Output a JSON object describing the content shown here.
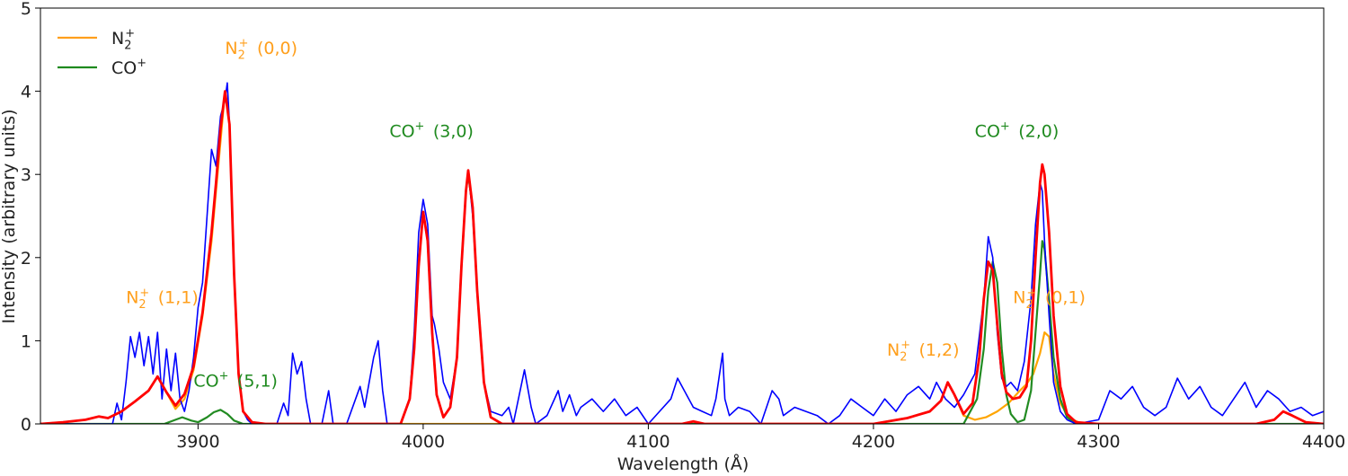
{
  "chart_data": {
    "type": "line",
    "title": "",
    "xlabel": "Wavelength (Å)",
    "ylabel": "Intensity (arbitrary units)",
    "xlim": [
      3830,
      4400
    ],
    "ylim": [
      0,
      5
    ],
    "x_ticks": [
      3900,
      4000,
      4100,
      4200,
      4300,
      4400
    ],
    "y_ticks": [
      0,
      1,
      2,
      3,
      4,
      5
    ],
    "grid": false,
    "legend_position": "top-left",
    "legend": [
      {
        "label_base": "N",
        "label_sub": "2",
        "label_sup": "+",
        "color": "#ff9f1c"
      },
      {
        "label_base": "CO",
        "label_sub": "",
        "label_sup": "+",
        "color": "#1f8a1f"
      }
    ],
    "colors": {
      "observed": "#0000ff",
      "n2_model": "#ffa500",
      "co_model": "#228b22",
      "total_model": "#ff0000"
    },
    "series": [
      {
        "id": "n2_model",
        "x": [
          3830,
          3840,
          3850,
          3856,
          3860,
          3866,
          3872,
          3878,
          3882,
          3886,
          3890,
          3894,
          3898,
          3902,
          3906,
          3908,
          3910,
          3912,
          3914,
          3916,
          3918,
          3920,
          3924,
          3930,
          4200,
          4215,
          4225,
          4230,
          4233,
          4236,
          4240,
          4245,
          4250,
          4255,
          4260,
          4265,
          4268,
          4271,
          4274,
          4276,
          4278,
          4280,
          4283,
          4287,
          4292,
          4300,
          4370,
          4378,
          4382,
          4386,
          4392,
          4400
        ],
        "y": [
          0,
          0.02,
          0.05,
          0.09,
          0.07,
          0.15,
          0.27,
          0.4,
          0.57,
          0.38,
          0.18,
          0.3,
          0.65,
          1.3,
          2.2,
          2.8,
          3.4,
          4.0,
          3.6,
          1.8,
          0.6,
          0.15,
          0.02,
          0,
          0,
          0.07,
          0.15,
          0.28,
          0.5,
          0.35,
          0.1,
          0.05,
          0.08,
          0.15,
          0.25,
          0.4,
          0.48,
          0.6,
          0.85,
          1.1,
          1.05,
          0.6,
          0.25,
          0.07,
          0.01,
          0,
          0,
          0.05,
          0.15,
          0.1,
          0.02,
          0
        ]
      },
      {
        "id": "co_model",
        "x": [
          3830,
          3885,
          3890,
          3893,
          3897,
          3900,
          3904,
          3907,
          3910,
          3913,
          3916,
          3920,
          3924,
          3990,
          3994,
          3996,
          3998,
          4000,
          4002,
          4004,
          4006,
          4009,
          4012,
          4015,
          4017,
          4019,
          4020,
          4022,
          4024,
          4027,
          4030,
          4035,
          4240,
          4246,
          4249,
          4251,
          4253,
          4255,
          4257,
          4259,
          4261,
          4264,
          4267,
          4270,
          4272,
          4274,
          4275,
          4276,
          4278,
          4280,
          4283,
          4286,
          4290,
          4400
        ],
        "y": [
          0,
          0,
          0.05,
          0.08,
          0.04,
          0.02,
          0.08,
          0.14,
          0.17,
          0.12,
          0.04,
          0,
          0,
          0,
          0.3,
          0.9,
          1.9,
          2.55,
          2.2,
          1.1,
          0.35,
          0.08,
          0.2,
          0.8,
          1.9,
          2.8,
          3.0,
          2.6,
          1.6,
          0.5,
          0.08,
          0,
          0,
          0.3,
          0.9,
          1.6,
          1.95,
          1.7,
          0.9,
          0.35,
          0.12,
          0.02,
          0.05,
          0.4,
          1.1,
          1.8,
          2.2,
          2.1,
          1.5,
          0.8,
          0.3,
          0.08,
          0,
          0
        ]
      },
      {
        "id": "total_model",
        "x": [
          3830,
          3840,
          3850,
          3856,
          3860,
          3866,
          3872,
          3878,
          3882,
          3886,
          3890,
          3894,
          3898,
          3902,
          3906,
          3908,
          3910,
          3912,
          3914,
          3916,
          3918,
          3920,
          3924,
          3930,
          3990,
          3994,
          3996,
          3998,
          4000,
          4002,
          4004,
          4006,
          4009,
          4012,
          4015,
          4017,
          4019,
          4020,
          4022,
          4024,
          4027,
          4030,
          4035,
          4115,
          4120,
          4125,
          4200,
          4215,
          4225,
          4230,
          4233,
          4236,
          4240,
          4244,
          4247,
          4249,
          4251,
          4253,
          4255,
          4257,
          4259,
          4262,
          4265,
          4268,
          4270,
          4272,
          4274,
          4275,
          4276,
          4278,
          4280,
          4283,
          4286,
          4290,
          4300,
          4370,
          4378,
          4382,
          4386,
          4392,
          4400
        ],
        "y": [
          0,
          0.02,
          0.05,
          0.09,
          0.07,
          0.15,
          0.27,
          0.4,
          0.57,
          0.38,
          0.22,
          0.36,
          0.69,
          1.34,
          2.3,
          2.9,
          3.55,
          4.0,
          3.6,
          1.8,
          0.6,
          0.15,
          0.02,
          0,
          0,
          0.3,
          0.9,
          1.9,
          2.55,
          2.2,
          1.1,
          0.35,
          0.08,
          0.2,
          0.8,
          1.9,
          2.8,
          3.05,
          2.6,
          1.6,
          0.5,
          0.08,
          0,
          0,
          0.03,
          0,
          0,
          0.07,
          0.15,
          0.28,
          0.5,
          0.35,
          0.12,
          0.25,
          0.8,
          1.5,
          1.95,
          1.85,
          1.2,
          0.6,
          0.38,
          0.3,
          0.32,
          0.45,
          1.0,
          2.0,
          2.9,
          3.12,
          3.0,
          2.3,
          1.3,
          0.45,
          0.12,
          0.02,
          0,
          0,
          0.05,
          0.15,
          0.1,
          0.02,
          0
        ]
      },
      {
        "id": "observed",
        "x": [
          3830,
          3862,
          3864,
          3866,
          3868,
          3870,
          3872,
          3874,
          3876,
          3878,
          3880,
          3882,
          3884,
          3886,
          3888,
          3890,
          3892,
          3894,
          3896,
          3898,
          3900,
          3902,
          3904,
          3906,
          3908,
          3910,
          3912,
          3913,
          3914,
          3916,
          3918,
          3920,
          3922,
          3924,
          3935,
          3938,
          3940,
          3942,
          3944,
          3946,
          3948,
          3950,
          3955,
          3958,
          3960,
          3962,
          3966,
          3970,
          3972,
          3974,
          3976,
          3978,
          3980,
          3982,
          3984,
          3990,
          3994,
          3996,
          3998,
          4000,
          4002,
          4004,
          4005,
          4007,
          4009,
          4012,
          4015,
          4017,
          4019,
          4020,
          4022,
          4024,
          4027,
          4030,
          4035,
          4038,
          4040,
          4045,
          4048,
          4050,
          4055,
          4060,
          4062,
          4065,
          4068,
          4070,
          4075,
          4080,
          4085,
          4090,
          4095,
          4100,
          4105,
          4110,
          4113,
          4116,
          4118,
          4120,
          4124,
          4128,
          4130,
          4133,
          4134,
          4136,
          4140,
          4145,
          4150,
          4155,
          4158,
          4160,
          4165,
          4170,
          4175,
          4180,
          4185,
          4190,
          4195,
          4200,
          4205,
          4210,
          4215,
          4220,
          4225,
          4228,
          4232,
          4236,
          4240,
          4245,
          4249,
          4251,
          4253,
          4255,
          4257,
          4259,
          4261,
          4264,
          4267,
          4270,
          4272,
          4274,
          4275,
          4276,
          4278,
          4280,
          4283,
          4286,
          4290,
          4300,
          4305,
          4310,
          4315,
          4320,
          4325,
          4330,
          4335,
          4340,
          4345,
          4350,
          4355,
          4360,
          4365,
          4370,
          4375,
          4380,
          4385,
          4390,
          4395,
          4400
        ],
        "y": [
          0,
          0,
          0.25,
          0.05,
          0.5,
          1.05,
          0.8,
          1.1,
          0.7,
          1.05,
          0.6,
          1.1,
          0.3,
          0.9,
          0.4,
          0.85,
          0.3,
          0.15,
          0.4,
          0.8,
          1.4,
          1.7,
          2.5,
          3.3,
          3.1,
          3.7,
          3.9,
          4.1,
          3.6,
          1.8,
          0.6,
          0.15,
          0.05,
          0,
          0,
          0.25,
          0.1,
          0.85,
          0.6,
          0.75,
          0.3,
          0,
          0,
          0.4,
          0,
          0,
          0,
          0.3,
          0.45,
          0.2,
          0.5,
          0.8,
          1.0,
          0.4,
          0,
          0,
          0.3,
          1.1,
          2.3,
          2.7,
          2.4,
          1.3,
          1.2,
          0.9,
          0.5,
          0.3,
          0.8,
          1.9,
          2.8,
          3.05,
          2.5,
          1.6,
          0.5,
          0.15,
          0.1,
          0.2,
          0,
          0.65,
          0.2,
          0,
          0.1,
          0.4,
          0.15,
          0.35,
          0.1,
          0.2,
          0.3,
          0.15,
          0.3,
          0.1,
          0.2,
          0,
          0.15,
          0.3,
          0.55,
          0.4,
          0.3,
          0.2,
          0.15,
          0.1,
          0.3,
          0.85,
          0.3,
          0.1,
          0.2,
          0.15,
          0,
          0.4,
          0.3,
          0.1,
          0.2,
          0.15,
          0.1,
          0,
          0.1,
          0.3,
          0.2,
          0.1,
          0.3,
          0.15,
          0.35,
          0.45,
          0.3,
          0.5,
          0.3,
          0.2,
          0.35,
          0.6,
          1.5,
          2.25,
          2.0,
          1.1,
          0.55,
          0.45,
          0.5,
          0.4,
          0.75,
          1.5,
          2.4,
          2.9,
          2.8,
          2.2,
          1.3,
          0.5,
          0.15,
          0.05,
          0,
          0.05,
          0.4,
          0.3,
          0.45,
          0.2,
          0.1,
          0.2,
          0.55,
          0.3,
          0.45,
          0.2,
          0.1,
          0.3,
          0.5,
          0.2,
          0.4,
          0.3,
          0.15,
          0.2,
          0.1,
          0.15
        ],
        "jagged": true
      }
    ],
    "annotations": [
      {
        "label_base": "N",
        "label_sub": "2",
        "label_sup": "+",
        "label_rest": "(0,0)",
        "x": 3912,
        "y": 4.45,
        "color": "#ff9f1c"
      },
      {
        "label_base": "N",
        "label_sub": "2",
        "label_sup": "+",
        "label_rest": "(1,1)",
        "x": 3868,
        "y": 1.45,
        "color": "#ff9f1c"
      },
      {
        "label_base": "CO",
        "label_sub": "",
        "label_sup": "+",
        "label_rest": "(5,1)",
        "x": 3898,
        "y": 0.45,
        "color": "#1f8a1f"
      },
      {
        "label_base": "CO",
        "label_sub": "",
        "label_sup": "+",
        "label_rest": "(3,0)",
        "x": 3985,
        "y": 3.45,
        "color": "#1f8a1f"
      },
      {
        "label_base": "CO",
        "label_sub": "",
        "label_sup": "+",
        "label_rest": "(2,0)",
        "x": 4245,
        "y": 3.45,
        "color": "#1f8a1f"
      },
      {
        "label_base": "N",
        "label_sub": "2",
        "label_sup": "+",
        "label_rest": "(1,2)",
        "x": 4206,
        "y": 0.82,
        "color": "#ff9f1c"
      },
      {
        "label_base": "N",
        "label_sub": "2",
        "label_sup": "+",
        "label_rest": "(0,1)",
        "x": 4262,
        "y": 1.45,
        "color": "#ff9f1c"
      }
    ]
  }
}
